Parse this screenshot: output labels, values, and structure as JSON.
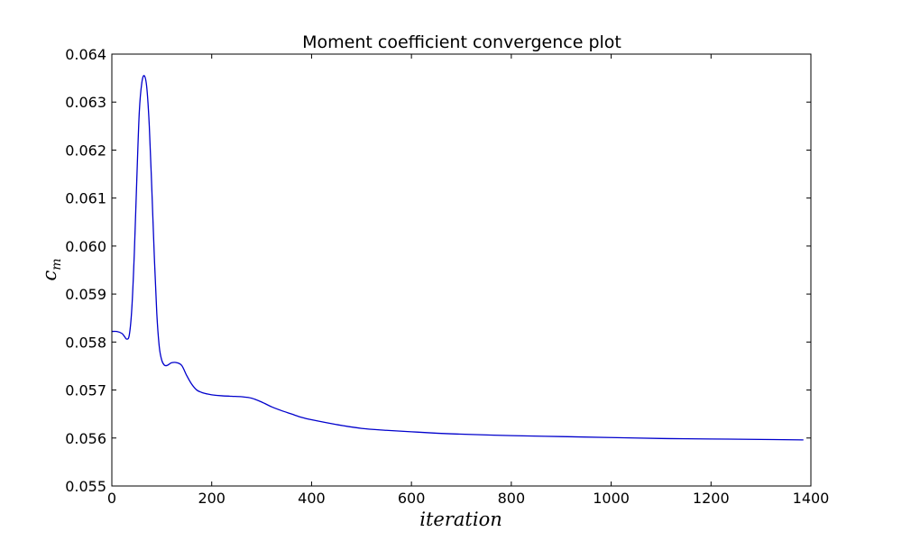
{
  "chart_data": {
    "type": "line",
    "title": "Moment coefficient convergence plot",
    "xlabel": "iteration",
    "ylabel": "c",
    "ylabel_subscript": "m",
    "xlim": [
      0,
      1400
    ],
    "ylim": [
      0.055,
      0.064
    ],
    "xticks": [
      "0",
      "200",
      "400",
      "600",
      "800",
      "1000",
      "1200",
      "1400"
    ],
    "yticks": [
      "0.055",
      "0.056",
      "0.057",
      "0.058",
      "0.059",
      "0.060",
      "0.061",
      "0.062",
      "0.063",
      "0.064"
    ],
    "grid": false,
    "line_color": "#0000cc",
    "series": [
      {
        "x": [
          0,
          10,
          20,
          25,
          30,
          35,
          40,
          45,
          50,
          55,
          60,
          65,
          70,
          75,
          80,
          85,
          90,
          95,
          100,
          105,
          110,
          115,
          120,
          130,
          140,
          150,
          160,
          170,
          180,
          190,
          200,
          220,
          240,
          260,
          280,
          300,
          320,
          340,
          360,
          380,
          400,
          450,
          500,
          550,
          600,
          650,
          700,
          800,
          900,
          1000,
          1100,
          1200,
          1300,
          1385
        ],
        "y": [
          0.05822,
          0.05822,
          0.05818,
          0.05812,
          0.05806,
          0.05815,
          0.0587,
          0.05985,
          0.0614,
          0.0628,
          0.0634,
          0.06355,
          0.0633,
          0.0625,
          0.0612,
          0.0598,
          0.0586,
          0.0579,
          0.05762,
          0.05752,
          0.05751,
          0.05754,
          0.05757,
          0.05757,
          0.05751,
          0.0573,
          0.05712,
          0.057,
          0.05695,
          0.05692,
          0.0569,
          0.05688,
          0.05687,
          0.05686,
          0.05683,
          0.05675,
          0.05665,
          0.05657,
          0.0565,
          0.05643,
          0.05638,
          0.05628,
          0.0562,
          0.05616,
          0.05613,
          0.0561,
          0.05608,
          0.05605,
          0.05603,
          0.05601,
          0.05599,
          0.05598,
          0.05597,
          0.05596
        ]
      }
    ]
  }
}
